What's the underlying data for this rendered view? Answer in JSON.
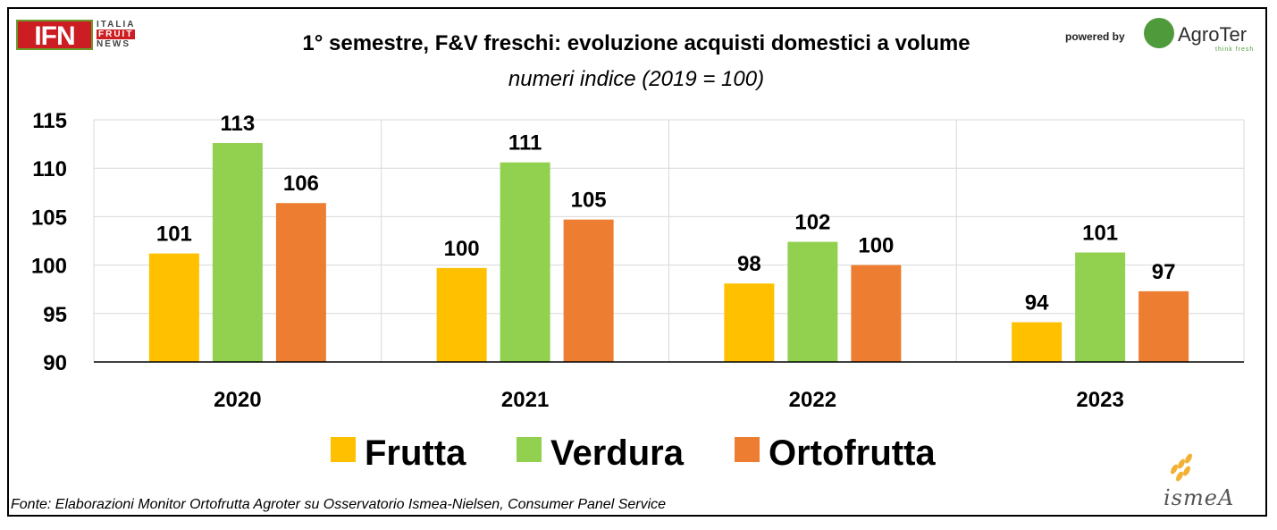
{
  "logos": {
    "ifn_box": "IFN",
    "ifn_line1": "ITALIA",
    "ifn_line2": "FRUIT",
    "ifn_line3": "NEWS",
    "powered_by": "powered by",
    "agroter": "AgroTer",
    "agroter_tag": "think fresh",
    "ismea": "ismeA"
  },
  "source": "Fonte: Elaborazioni Monitor Ortofrutta Agroter su Osservatorio Ismea-Nielsen, Consumer Panel Service",
  "colors": {
    "frutta": "#ffc000",
    "verdura": "#92d050",
    "ortofrutta": "#ed7d31",
    "grid": "#d9d9d9"
  },
  "chart_data": {
    "type": "bar",
    "title": "1° semestre, F&V freschi: evoluzione acquisti domestici a volume",
    "subtitle": "numeri indice (2019 = 100)",
    "categories": [
      "2020",
      "2021",
      "2022",
      "2023"
    ],
    "series": [
      {
        "name": "Frutta",
        "values": [
          101.2,
          99.7,
          98.1,
          94.1
        ],
        "labels": [
          "101",
          "100",
          "98",
          "94"
        ]
      },
      {
        "name": "Verdura",
        "values": [
          112.6,
          110.6,
          102.4,
          101.3
        ],
        "labels": [
          "113",
          "111",
          "102",
          "101"
        ]
      },
      {
        "name": "Ortofrutta",
        "values": [
          106.4,
          104.7,
          100.0,
          97.3
        ],
        "labels": [
          "106",
          "105",
          "100",
          "97"
        ]
      }
    ],
    "ylim": [
      90,
      115
    ],
    "yticks": [
      "90",
      "95",
      "100",
      "105",
      "110",
      "115"
    ],
    "grid": true,
    "legend": "bottom"
  }
}
